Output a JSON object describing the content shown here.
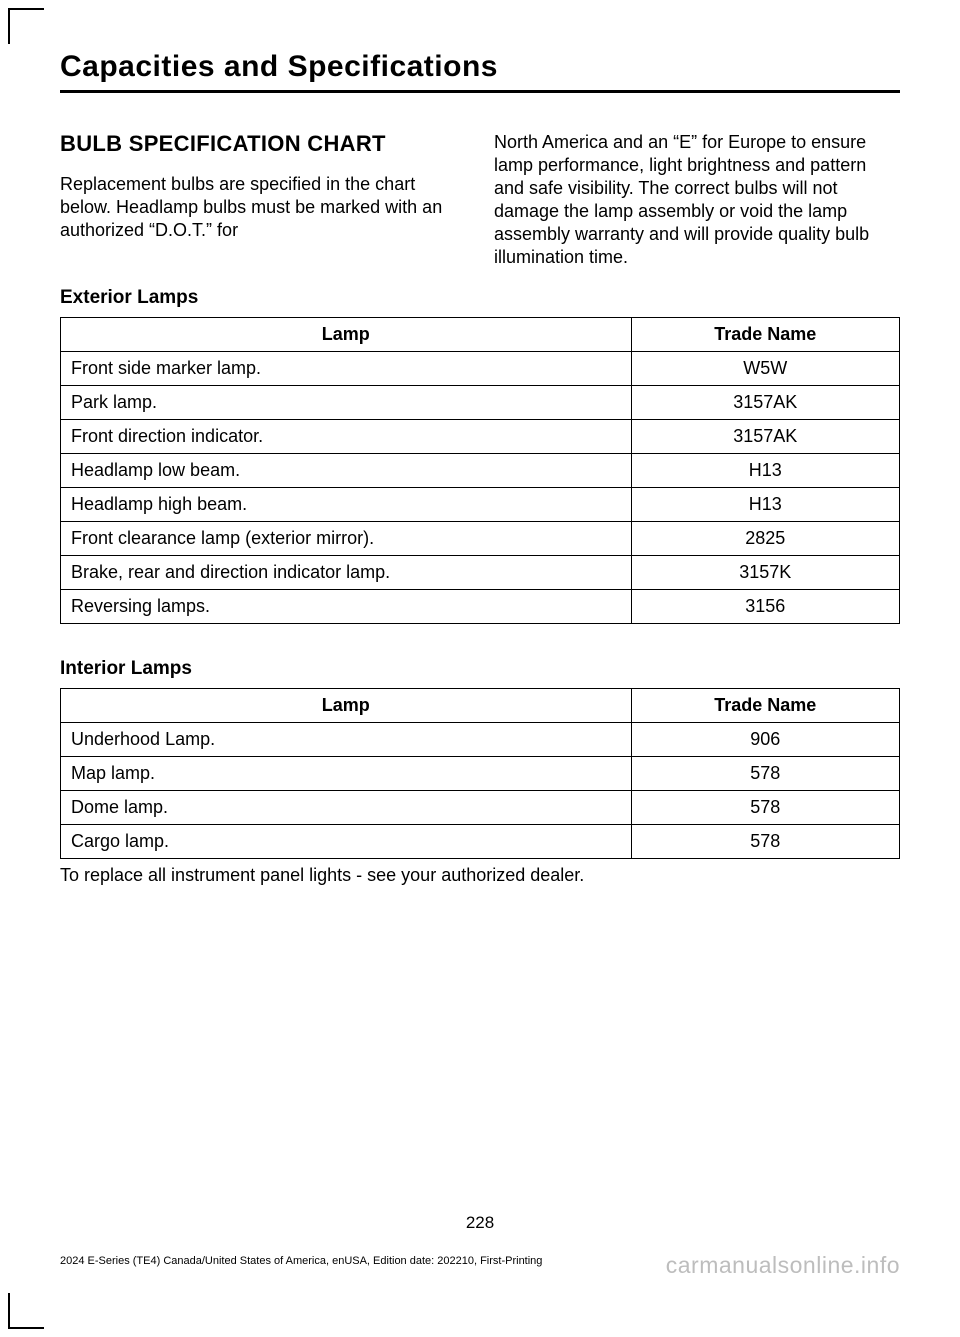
{
  "chapter_title": "Capacities and Specifications",
  "section_title": "BULB SPECIFICATION CHART",
  "intro_left": "Replacement bulbs are specified in the chart below. Headlamp bulbs must be marked with an authorized “D.O.T.” for",
  "intro_right": "North America and an “E” for Europe to ensure lamp performance, light brightness and pattern and safe visibility. The correct bulbs will not damage the lamp assembly or void the lamp assembly warranty and will provide quality bulb illumination time.",
  "exterior": {
    "heading": "Exterior Lamps",
    "columns": [
      "Lamp",
      "Trade Name"
    ],
    "rows": [
      [
        "Front side marker lamp.",
        "W5W"
      ],
      [
        "Park lamp.",
        "3157AK"
      ],
      [
        "Front direction indicator.",
        "3157AK"
      ],
      [
        "Headlamp low beam.",
        "H13"
      ],
      [
        "Headlamp high beam.",
        "H13"
      ],
      [
        "Front clearance lamp (exterior mirror).",
        "2825"
      ],
      [
        "Brake, rear and direction indicator lamp.",
        "3157K"
      ],
      [
        "Reversing lamps.",
        "3156"
      ]
    ]
  },
  "interior": {
    "heading": "Interior Lamps",
    "columns": [
      "Lamp",
      "Trade Name"
    ],
    "rows": [
      [
        "Underhood Lamp.",
        "906"
      ],
      [
        "Map lamp.",
        "578"
      ],
      [
        "Dome lamp.",
        "578"
      ],
      [
        "Cargo lamp.",
        "578"
      ]
    ]
  },
  "note": "To replace all instrument panel lights - see your authorized dealer.",
  "page_number": "228",
  "footer": "2024 E-Series (TE4) Canada/United States of America, enUSA, Edition date: 202210, First-Printing",
  "watermark": "carmanualsonline.info"
}
